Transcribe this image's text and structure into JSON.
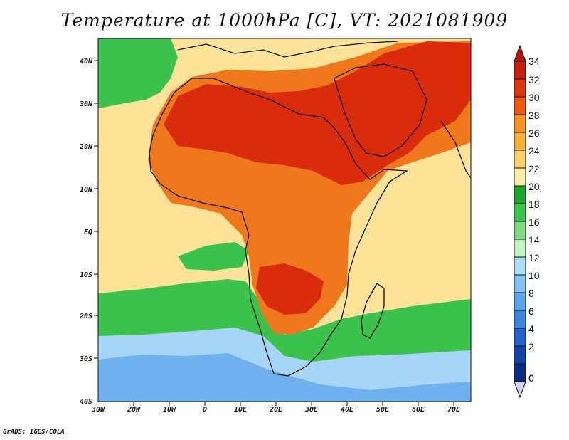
{
  "title": "Temperature at 1000hPa [C], VT: 2021081909",
  "footer": "GrADS: IGES/COLA",
  "map": {
    "lat_labels": [
      "40N",
      "30N",
      "20N",
      "10N",
      "EQ",
      "10S",
      "20S",
      "30S",
      "40S"
    ],
    "lon_labels": [
      "30W",
      "20W",
      "10W",
      "0",
      "10E",
      "20E",
      "30E",
      "40E",
      "50E",
      "60E",
      "70E"
    ]
  },
  "colorbar": {
    "labels": [
      "34",
      "32",
      "30",
      "28",
      "26",
      "24",
      "22",
      "20",
      "18",
      "16",
      "14",
      "12",
      "10",
      "8",
      "6",
      "4",
      "2",
      "0"
    ],
    "colors": [
      "#c81e0e",
      "#e0350c",
      "#ee5a12",
      "#f7931f",
      "#fbb03b",
      "#fdd06c",
      "#fcefa8",
      "#1ea52f",
      "#3dc44a",
      "#7ede84",
      "#c5f2c5",
      "#b0dcf7",
      "#85c3f3",
      "#5aa6ec",
      "#3a85de",
      "#2563cc",
      "#1244a8",
      "#0d2a85"
    ],
    "top_arrow_color": "#b8140a",
    "bottom_arrow_color": "#d8d0f5"
  },
  "regions": {
    "ocean_cool_color": "#6fb0ee",
    "ocean_mid_color": "#a8d4f6",
    "ocean_green_color": "#3cc24c",
    "ocean_warm_color": "#fde39a",
    "land_hot_color": "#d92c0c",
    "land_warm_color": "#f0781c"
  }
}
